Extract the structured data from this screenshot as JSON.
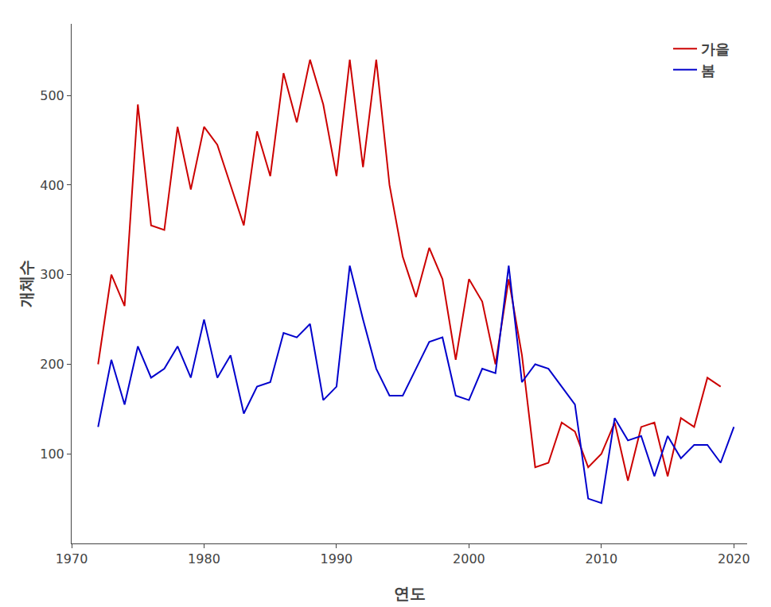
{
  "chart_data": {
    "type": "line",
    "x_label": "연도",
    "y_label": "개체수",
    "series": [
      {
        "name": "가을",
        "color": "#CC0000",
        "x": [
          1972,
          1973,
          1974,
          1975,
          1976,
          1977,
          1978,
          1979,
          1980,
          1981,
          1982,
          1983,
          1984,
          1985,
          1986,
          1987,
          1988,
          1989,
          1990,
          1991,
          1992,
          1993,
          1994,
          1995,
          1996,
          1997,
          1998,
          1999,
          2000,
          2001,
          2002,
          2003,
          2004,
          2005,
          2006,
          2007,
          2008,
          2009,
          2010,
          2011,
          2012,
          2013,
          2014,
          2015,
          2016,
          2017,
          2018,
          2019
        ],
        "values": [
          200,
          300,
          265,
          490,
          355,
          350,
          465,
          395,
          465,
          445,
          400,
          355,
          460,
          410,
          525,
          470,
          540,
          490,
          410,
          540,
          420,
          540,
          400,
          320,
          275,
          330,
          295,
          205,
          295,
          270,
          200,
          295,
          210,
          85,
          90,
          135,
          125,
          85,
          100,
          135,
          70,
          130,
          135,
          75,
          140,
          130,
          185,
          175
        ]
      },
      {
        "name": "봄",
        "color": "#0000CC",
        "x": [
          1972,
          1973,
          1974,
          1975,
          1976,
          1977,
          1978,
          1979,
          1980,
          1981,
          1982,
          1983,
          1984,
          1985,
          1986,
          1987,
          1988,
          1989,
          1990,
          1991,
          1992,
          1993,
          1994,
          1995,
          1996,
          1997,
          1998,
          1999,
          2000,
          2001,
          2002,
          2003,
          2004,
          2005,
          2006,
          2007,
          2008,
          2009,
          2010,
          2011,
          2012,
          2013,
          2014,
          2015,
          2016,
          2017,
          2018,
          2019,
          2020
        ],
        "values": [
          130,
          205,
          155,
          220,
          185,
          195,
          220,
          185,
          250,
          185,
          210,
          145,
          175,
          180,
          235,
          230,
          245,
          160,
          175,
          310,
          250,
          195,
          165,
          165,
          195,
          225,
          230,
          165,
          160,
          195,
          190,
          310,
          180,
          200,
          195,
          175,
          155,
          50,
          45,
          140,
          115,
          120,
          75,
          120,
          95,
          110,
          110,
          90,
          130
        ]
      }
    ],
    "xlim": [
      1970,
      2021
    ],
    "ylim": [
      0,
      580
    ],
    "xticks": [
      1970,
      1980,
      1990,
      2000,
      2010,
      2020
    ],
    "yticks": [
      100,
      200,
      300,
      400,
      500
    ],
    "grid": false,
    "legend": "upper right"
  }
}
